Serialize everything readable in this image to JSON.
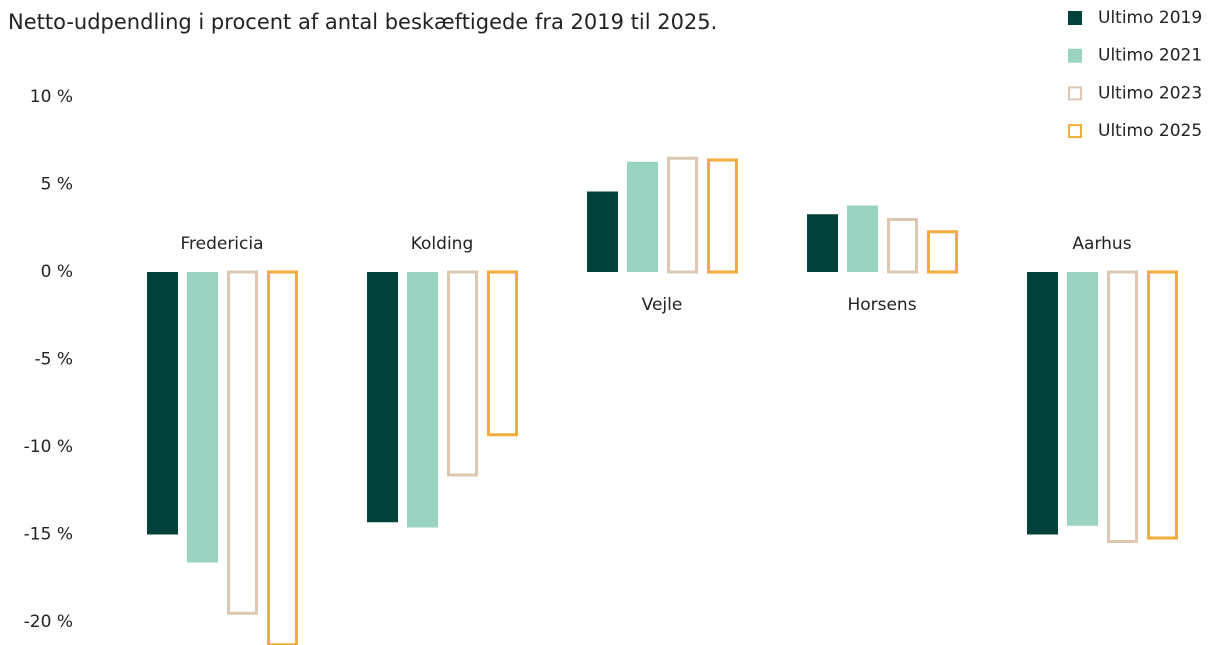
{
  "chart_data": {
    "type": "bar",
    "title": "Netto-udpendling i procent af antal beskæftigede fra 2019 til 2025.",
    "categories": [
      "Fredericia",
      "Kolding",
      "Vejle",
      "Horsens",
      "Aarhus"
    ],
    "series": [
      {
        "name": "Ultimo 2019",
        "color": "#00413a",
        "filled": true,
        "values": [
          -15,
          -14.3,
          4.6,
          3.3,
          -15
        ]
      },
      {
        "name": "Ultimo 2021",
        "color": "#9bd3c3",
        "filled": true,
        "values": [
          -16.6,
          -14.6,
          6.3,
          3.8,
          -14.5
        ]
      },
      {
        "name": "Ultimo 2023",
        "color": "#dcc8b2",
        "filled": false,
        "values": [
          -19.5,
          -11.6,
          6.5,
          3.0,
          -15.4
        ]
      },
      {
        "name": "Ultimo 2025",
        "color": "#f0ad3c",
        "filled": false,
        "values": [
          -21.3,
          -9.3,
          6.4,
          2.3,
          -15.2
        ]
      }
    ],
    "ylim": [
      -21.4,
      10.5
    ],
    "yticks": [
      {
        "value": 10,
        "label": "10 %"
      },
      {
        "value": 5,
        "label": "5 %"
      },
      {
        "value": 0,
        "label": "0 %"
      },
      {
        "value": -5,
        "label": "-5 %"
      },
      {
        "value": -10,
        "label": "-10 %"
      },
      {
        "value": -15,
        "label": "-15 %"
      },
      {
        "value": -20,
        "label": "-20 %"
      }
    ],
    "grid": false,
    "legend": "top-right"
  }
}
